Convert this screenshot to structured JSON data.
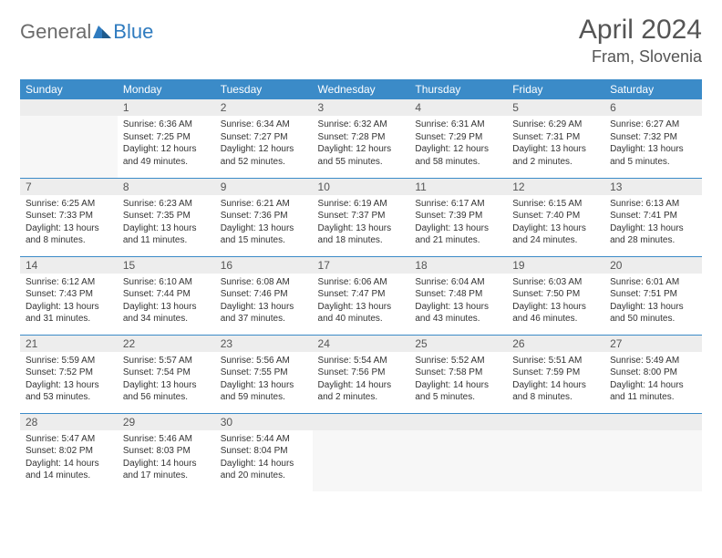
{
  "logo": {
    "general": "General",
    "blue": "Blue"
  },
  "header": {
    "month": "April 2024",
    "location": "Fram, Slovenia"
  },
  "colors": {
    "header_bg": "#3b8bc8",
    "header_fg": "#ffffff",
    "daynum_bg": "#ededed",
    "border": "#3b8bc8",
    "logo_gray": "#6b6b6b",
    "logo_blue": "#2f7bbf",
    "empty_fill": "#f7f7f7"
  },
  "weekdays": [
    "Sunday",
    "Monday",
    "Tuesday",
    "Wednesday",
    "Thursday",
    "Friday",
    "Saturday"
  ],
  "weeks": [
    [
      {
        "n": "",
        "sr": "",
        "ss": "",
        "dl": ""
      },
      {
        "n": "1",
        "sr": "Sunrise: 6:36 AM",
        "ss": "Sunset: 7:25 PM",
        "dl": "Daylight: 12 hours and 49 minutes."
      },
      {
        "n": "2",
        "sr": "Sunrise: 6:34 AM",
        "ss": "Sunset: 7:27 PM",
        "dl": "Daylight: 12 hours and 52 minutes."
      },
      {
        "n": "3",
        "sr": "Sunrise: 6:32 AM",
        "ss": "Sunset: 7:28 PM",
        "dl": "Daylight: 12 hours and 55 minutes."
      },
      {
        "n": "4",
        "sr": "Sunrise: 6:31 AM",
        "ss": "Sunset: 7:29 PM",
        "dl": "Daylight: 12 hours and 58 minutes."
      },
      {
        "n": "5",
        "sr": "Sunrise: 6:29 AM",
        "ss": "Sunset: 7:31 PM",
        "dl": "Daylight: 13 hours and 2 minutes."
      },
      {
        "n": "6",
        "sr": "Sunrise: 6:27 AM",
        "ss": "Sunset: 7:32 PM",
        "dl": "Daylight: 13 hours and 5 minutes."
      }
    ],
    [
      {
        "n": "7",
        "sr": "Sunrise: 6:25 AM",
        "ss": "Sunset: 7:33 PM",
        "dl": "Daylight: 13 hours and 8 minutes."
      },
      {
        "n": "8",
        "sr": "Sunrise: 6:23 AM",
        "ss": "Sunset: 7:35 PM",
        "dl": "Daylight: 13 hours and 11 minutes."
      },
      {
        "n": "9",
        "sr": "Sunrise: 6:21 AM",
        "ss": "Sunset: 7:36 PM",
        "dl": "Daylight: 13 hours and 15 minutes."
      },
      {
        "n": "10",
        "sr": "Sunrise: 6:19 AM",
        "ss": "Sunset: 7:37 PM",
        "dl": "Daylight: 13 hours and 18 minutes."
      },
      {
        "n": "11",
        "sr": "Sunrise: 6:17 AM",
        "ss": "Sunset: 7:39 PM",
        "dl": "Daylight: 13 hours and 21 minutes."
      },
      {
        "n": "12",
        "sr": "Sunrise: 6:15 AM",
        "ss": "Sunset: 7:40 PM",
        "dl": "Daylight: 13 hours and 24 minutes."
      },
      {
        "n": "13",
        "sr": "Sunrise: 6:13 AM",
        "ss": "Sunset: 7:41 PM",
        "dl": "Daylight: 13 hours and 28 minutes."
      }
    ],
    [
      {
        "n": "14",
        "sr": "Sunrise: 6:12 AM",
        "ss": "Sunset: 7:43 PM",
        "dl": "Daylight: 13 hours and 31 minutes."
      },
      {
        "n": "15",
        "sr": "Sunrise: 6:10 AM",
        "ss": "Sunset: 7:44 PM",
        "dl": "Daylight: 13 hours and 34 minutes."
      },
      {
        "n": "16",
        "sr": "Sunrise: 6:08 AM",
        "ss": "Sunset: 7:46 PM",
        "dl": "Daylight: 13 hours and 37 minutes."
      },
      {
        "n": "17",
        "sr": "Sunrise: 6:06 AM",
        "ss": "Sunset: 7:47 PM",
        "dl": "Daylight: 13 hours and 40 minutes."
      },
      {
        "n": "18",
        "sr": "Sunrise: 6:04 AM",
        "ss": "Sunset: 7:48 PM",
        "dl": "Daylight: 13 hours and 43 minutes."
      },
      {
        "n": "19",
        "sr": "Sunrise: 6:03 AM",
        "ss": "Sunset: 7:50 PM",
        "dl": "Daylight: 13 hours and 46 minutes."
      },
      {
        "n": "20",
        "sr": "Sunrise: 6:01 AM",
        "ss": "Sunset: 7:51 PM",
        "dl": "Daylight: 13 hours and 50 minutes."
      }
    ],
    [
      {
        "n": "21",
        "sr": "Sunrise: 5:59 AM",
        "ss": "Sunset: 7:52 PM",
        "dl": "Daylight: 13 hours and 53 minutes."
      },
      {
        "n": "22",
        "sr": "Sunrise: 5:57 AM",
        "ss": "Sunset: 7:54 PM",
        "dl": "Daylight: 13 hours and 56 minutes."
      },
      {
        "n": "23",
        "sr": "Sunrise: 5:56 AM",
        "ss": "Sunset: 7:55 PM",
        "dl": "Daylight: 13 hours and 59 minutes."
      },
      {
        "n": "24",
        "sr": "Sunrise: 5:54 AM",
        "ss": "Sunset: 7:56 PM",
        "dl": "Daylight: 14 hours and 2 minutes."
      },
      {
        "n": "25",
        "sr": "Sunrise: 5:52 AM",
        "ss": "Sunset: 7:58 PM",
        "dl": "Daylight: 14 hours and 5 minutes."
      },
      {
        "n": "26",
        "sr": "Sunrise: 5:51 AM",
        "ss": "Sunset: 7:59 PM",
        "dl": "Daylight: 14 hours and 8 minutes."
      },
      {
        "n": "27",
        "sr": "Sunrise: 5:49 AM",
        "ss": "Sunset: 8:00 PM",
        "dl": "Daylight: 14 hours and 11 minutes."
      }
    ],
    [
      {
        "n": "28",
        "sr": "Sunrise: 5:47 AM",
        "ss": "Sunset: 8:02 PM",
        "dl": "Daylight: 14 hours and 14 minutes."
      },
      {
        "n": "29",
        "sr": "Sunrise: 5:46 AM",
        "ss": "Sunset: 8:03 PM",
        "dl": "Daylight: 14 hours and 17 minutes."
      },
      {
        "n": "30",
        "sr": "Sunrise: 5:44 AM",
        "ss": "Sunset: 8:04 PM",
        "dl": "Daylight: 14 hours and 20 minutes."
      },
      {
        "n": "",
        "sr": "",
        "ss": "",
        "dl": ""
      },
      {
        "n": "",
        "sr": "",
        "ss": "",
        "dl": ""
      },
      {
        "n": "",
        "sr": "",
        "ss": "",
        "dl": ""
      },
      {
        "n": "",
        "sr": "",
        "ss": "",
        "dl": ""
      }
    ]
  ]
}
